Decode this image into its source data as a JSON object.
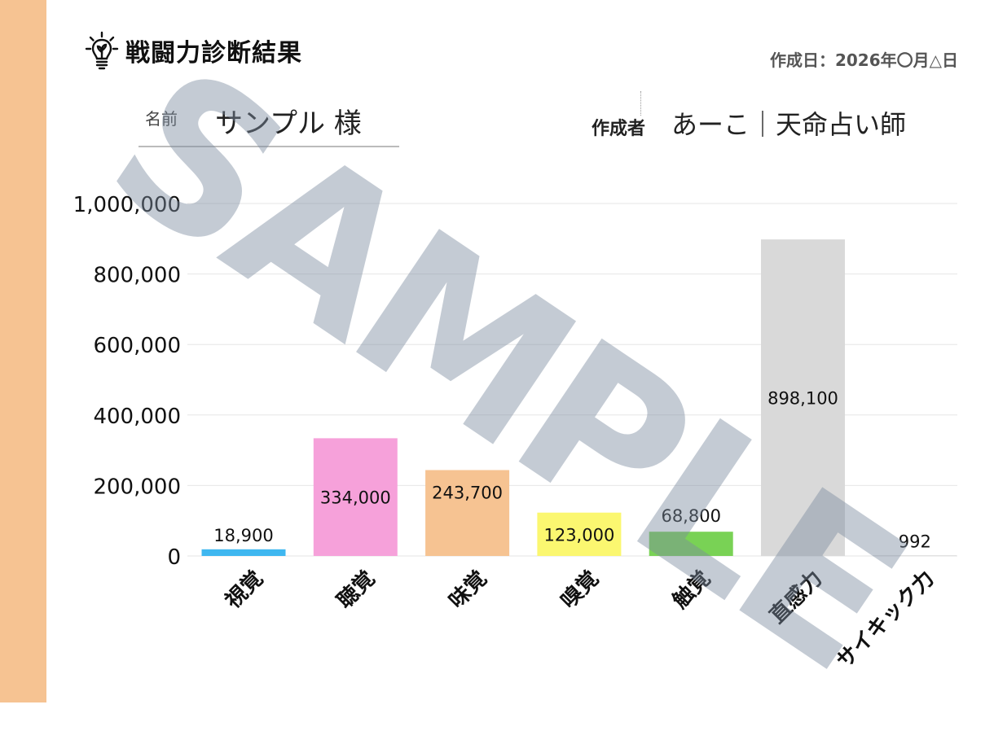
{
  "header": {
    "title": "戦闘力診断結果",
    "date": "作成日：2026年〇月△日",
    "name_label": "名前",
    "name_value": "サンプル 様",
    "author_label": "作成者",
    "author_value": "あーこ｜天命占い師"
  },
  "watermark": "SAMPLE",
  "colors": {
    "left_strip": "#f6c392",
    "grid": "#e6e6e6"
  },
  "icons": [
    "lightbulb-icon"
  ],
  "chart_data": {
    "type": "bar",
    "title": "",
    "xlabel": "",
    "ylabel": "",
    "ylim": [
      0,
      1000000
    ],
    "y_ticks": [
      0,
      200000,
      400000,
      600000,
      800000,
      1000000
    ],
    "y_tick_labels": [
      "0",
      "200,000",
      "400,000",
      "600,000",
      "800,000",
      "1,000,000"
    ],
    "categories": [
      "視覚",
      "聴覚",
      "味覚",
      "嗅覚",
      "触覚",
      "直感力",
      "サイキック力"
    ],
    "values": [
      18900,
      334000,
      243700,
      123000,
      68800,
      898100,
      992
    ],
    "value_labels": [
      "18,900",
      "334,000",
      "243,700",
      "123,000",
      "68,800",
      "898,100",
      "992"
    ],
    "bar_colors": [
      "#3fb7f0",
      "#f6a1da",
      "#f6c392",
      "#fbf770",
      "#79d255",
      "#d9d9d9",
      "#c0c0c0"
    ],
    "grid": true,
    "legend": "none"
  }
}
